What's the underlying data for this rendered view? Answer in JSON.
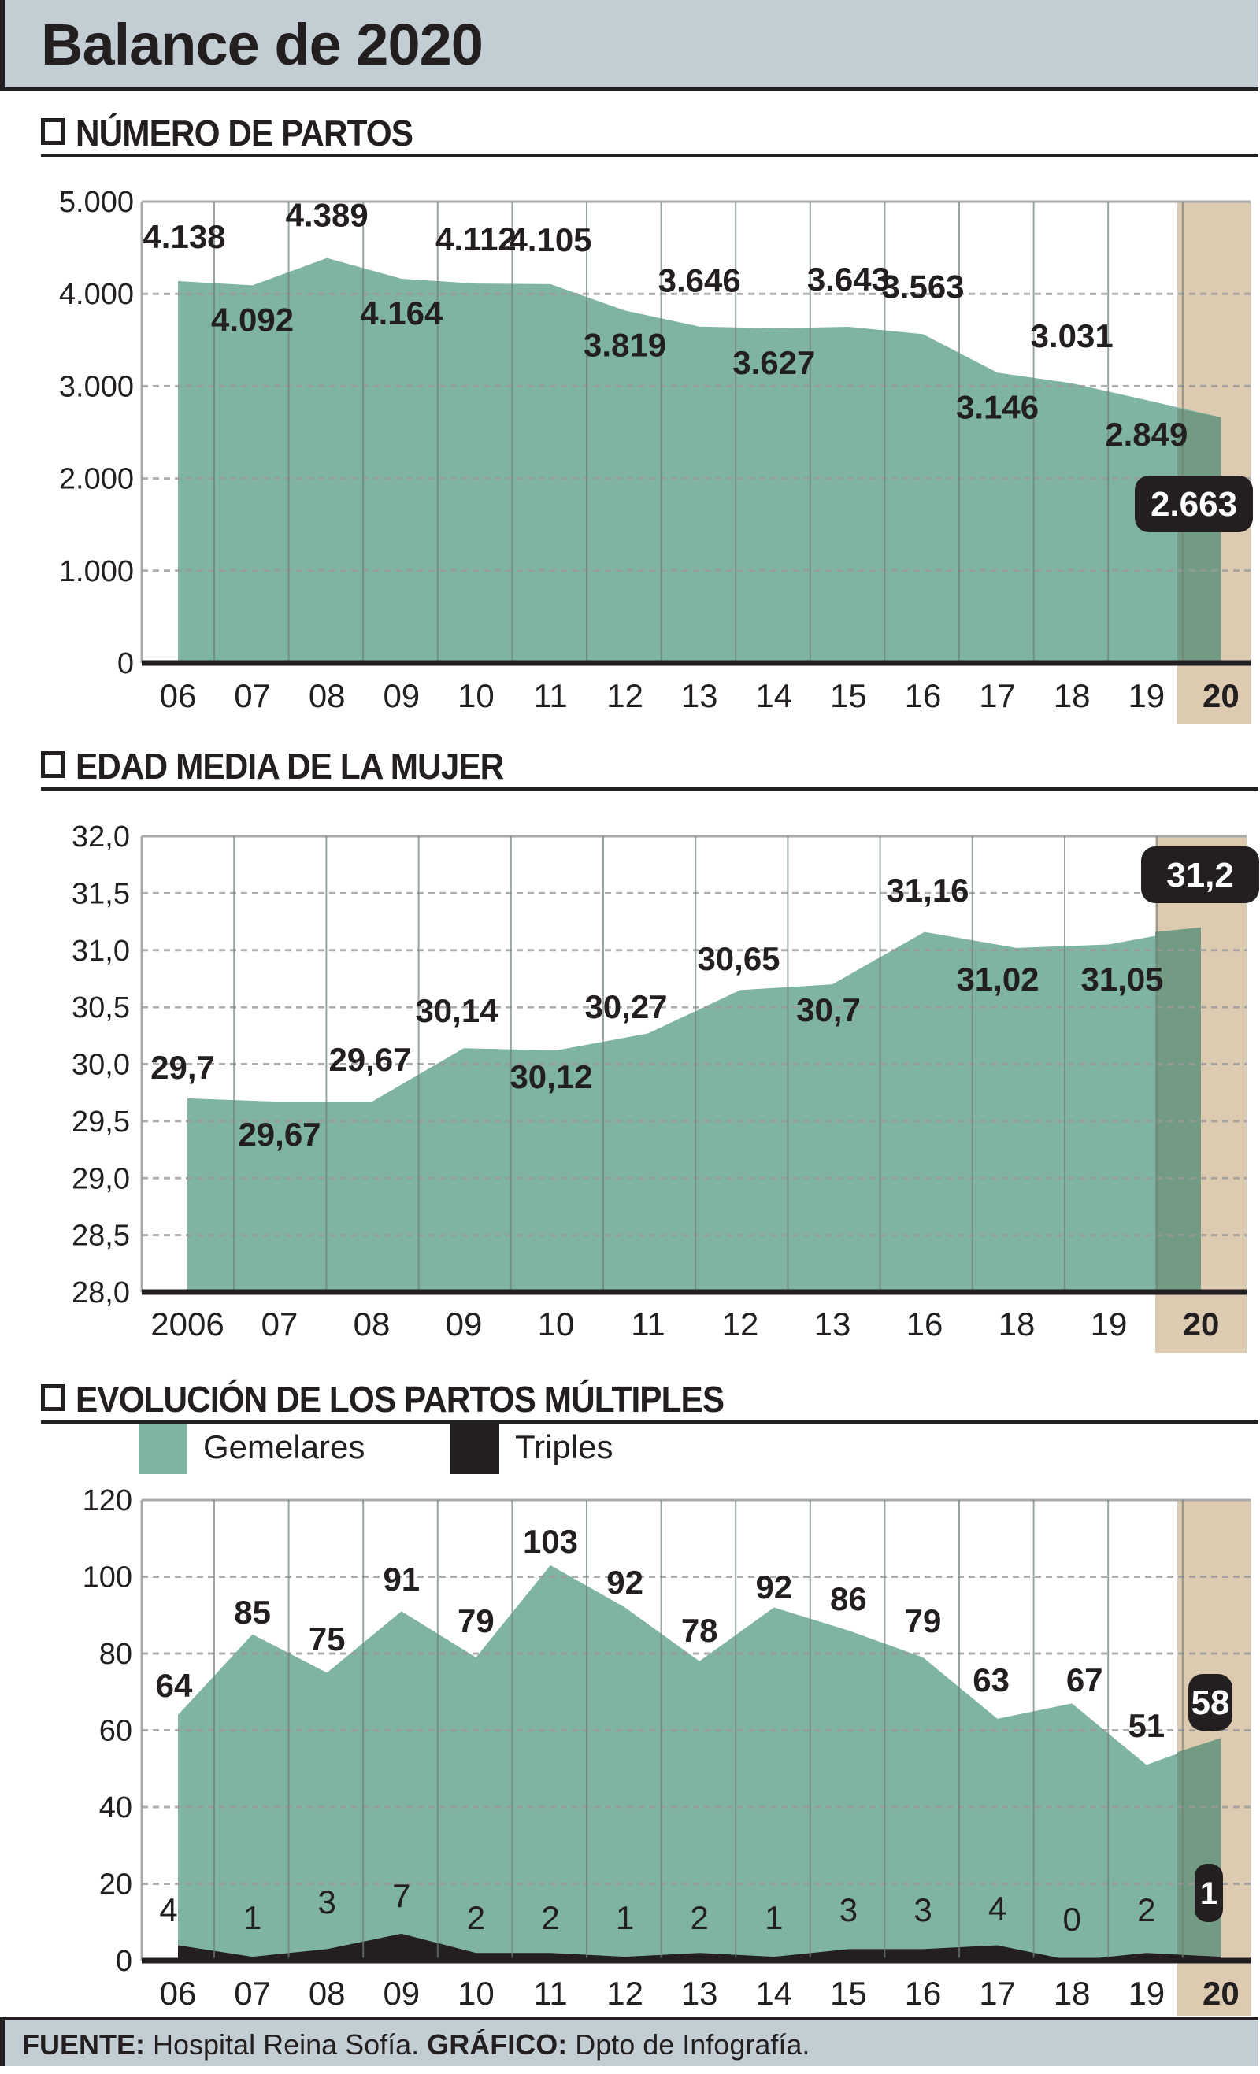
{
  "header": {
    "title": "Balance de 2020"
  },
  "colors": {
    "area": "#7fb3a3",
    "area_highlight": "#739a82",
    "highlight_col": "#dccbb0",
    "triples": "#231f20",
    "grid": "#9a9a9a",
    "text": "#231f20",
    "header_bg": "#c2cdd4"
  },
  "sections": {
    "partos": {
      "title": "NÚMERO DE PARTOS"
    },
    "edad": {
      "title": "EDAD MEDIA DE LA MUJER"
    },
    "multiples": {
      "title": "EVOLUCIÓN DE LOS PARTOS MÚLTIPLES"
    }
  },
  "legend": {
    "gemelares": "Gemelares",
    "triples": "Triples"
  },
  "footer": {
    "source_label": "FUENTE:",
    "source_value": " Hospital Reina Sofía. ",
    "graphic_label": "GRÁFICO:",
    "graphic_value": " Dpto de Infografía."
  },
  "chart_data": [
    {
      "type": "area",
      "title": "NÚMERO DE PARTOS",
      "categories": [
        "06",
        "07",
        "08",
        "09",
        "10",
        "11",
        "12",
        "13",
        "14",
        "15",
        "16",
        "17",
        "18",
        "19",
        "20"
      ],
      "values": [
        4138,
        4092,
        4389,
        4164,
        4112,
        4105,
        3819,
        3646,
        3627,
        3643,
        3563,
        3146,
        3031,
        2849,
        2663
      ],
      "labels": [
        "4.138",
        "4.092",
        "4.389",
        "4.164",
        "4.112",
        "4.105",
        "3.819",
        "3.646",
        "3.627",
        "3.643",
        "3.563",
        "3.146",
        "3.031",
        "2.849",
        "2.663"
      ],
      "yticks": [
        "0",
        "1.000",
        "2.000",
        "3.000",
        "4.000",
        "5.000"
      ],
      "ylim": [
        0,
        5000
      ],
      "highlight": "20",
      "grid": true
    },
    {
      "type": "area",
      "title": "EDAD MEDIA DE LA MUJER",
      "categories": [
        "2006",
        "07",
        "08",
        "09",
        "10",
        "11",
        "12",
        "13",
        "16",
        "18",
        "19",
        "20"
      ],
      "values": [
        29.7,
        29.67,
        29.67,
        30.14,
        30.12,
        30.27,
        30.65,
        30.7,
        31.16,
        31.02,
        31.05,
        31.2
      ],
      "labels": [
        "29,7",
        "29,67",
        "29,67",
        "30,14",
        "30,12",
        "30,27",
        "30,65",
        "30,7",
        "31,16",
        "31,02",
        "31,05",
        "31,2"
      ],
      "yticks": [
        "28,0",
        "28,5",
        "29,0",
        "29,5",
        "30,0",
        "30,5",
        "31,0",
        "31,5",
        "32,0"
      ],
      "ylim": [
        28,
        32
      ],
      "highlight": "20",
      "grid": true
    },
    {
      "type": "area",
      "title": "EVOLUCIÓN DE LOS PARTOS MÚLTIPLES",
      "categories": [
        "06",
        "07",
        "08",
        "09",
        "10",
        "11",
        "12",
        "13",
        "14",
        "15",
        "16",
        "17",
        "18",
        "19",
        "20"
      ],
      "series": [
        {
          "name": "Gemelares",
          "values": [
            64,
            85,
            75,
            91,
            79,
            103,
            92,
            78,
            92,
            86,
            79,
            63,
            67,
            51,
            58
          ]
        },
        {
          "name": "Triples",
          "values": [
            4,
            1,
            3,
            7,
            2,
            2,
            1,
            2,
            1,
            3,
            3,
            4,
            0,
            2,
            1
          ]
        }
      ],
      "yticks": [
        "0",
        "20",
        "40",
        "60",
        "80",
        "100",
        "120"
      ],
      "ylim": [
        0,
        120
      ],
      "legend_position": "top-left",
      "highlight": "20",
      "grid": true
    }
  ]
}
